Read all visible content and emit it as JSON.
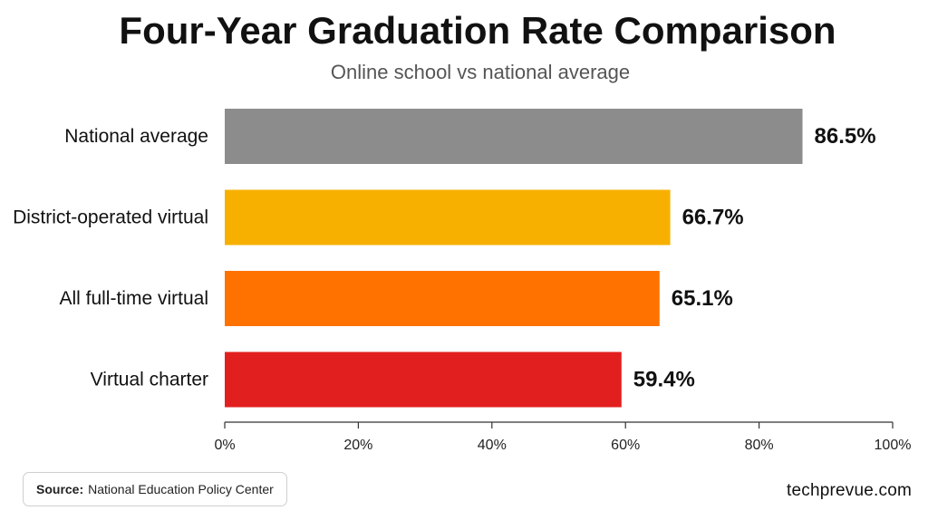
{
  "chart_data": {
    "type": "bar",
    "orientation": "horizontal",
    "title": "Four-Year Graduation Rate Comparison",
    "subtitle": "Online school vs national average",
    "categories": [
      "National average",
      "District-operated virtual",
      "All full-time virtual",
      "Virtual charter"
    ],
    "values": [
      86.5,
      66.7,
      65.1,
      59.4
    ],
    "value_labels": [
      "86.5%",
      "66.7%",
      "65.1%",
      "59.4%"
    ],
    "colors": [
      "#8c8c8c",
      "#f7b000",
      "#ff7200",
      "#e21f1f"
    ],
    "xlim": [
      0,
      100
    ],
    "xticks": [
      0,
      20,
      40,
      60,
      80,
      100
    ],
    "xtick_labels": [
      "0%",
      "20%",
      "40%",
      "60%",
      "80%",
      "100%"
    ],
    "xlabel": "",
    "ylabel": "",
    "grid": false,
    "legend": "none"
  },
  "footer": {
    "source_label": "Source:",
    "source_text": "National Education Policy Center",
    "brand": "techprevue.com"
  }
}
